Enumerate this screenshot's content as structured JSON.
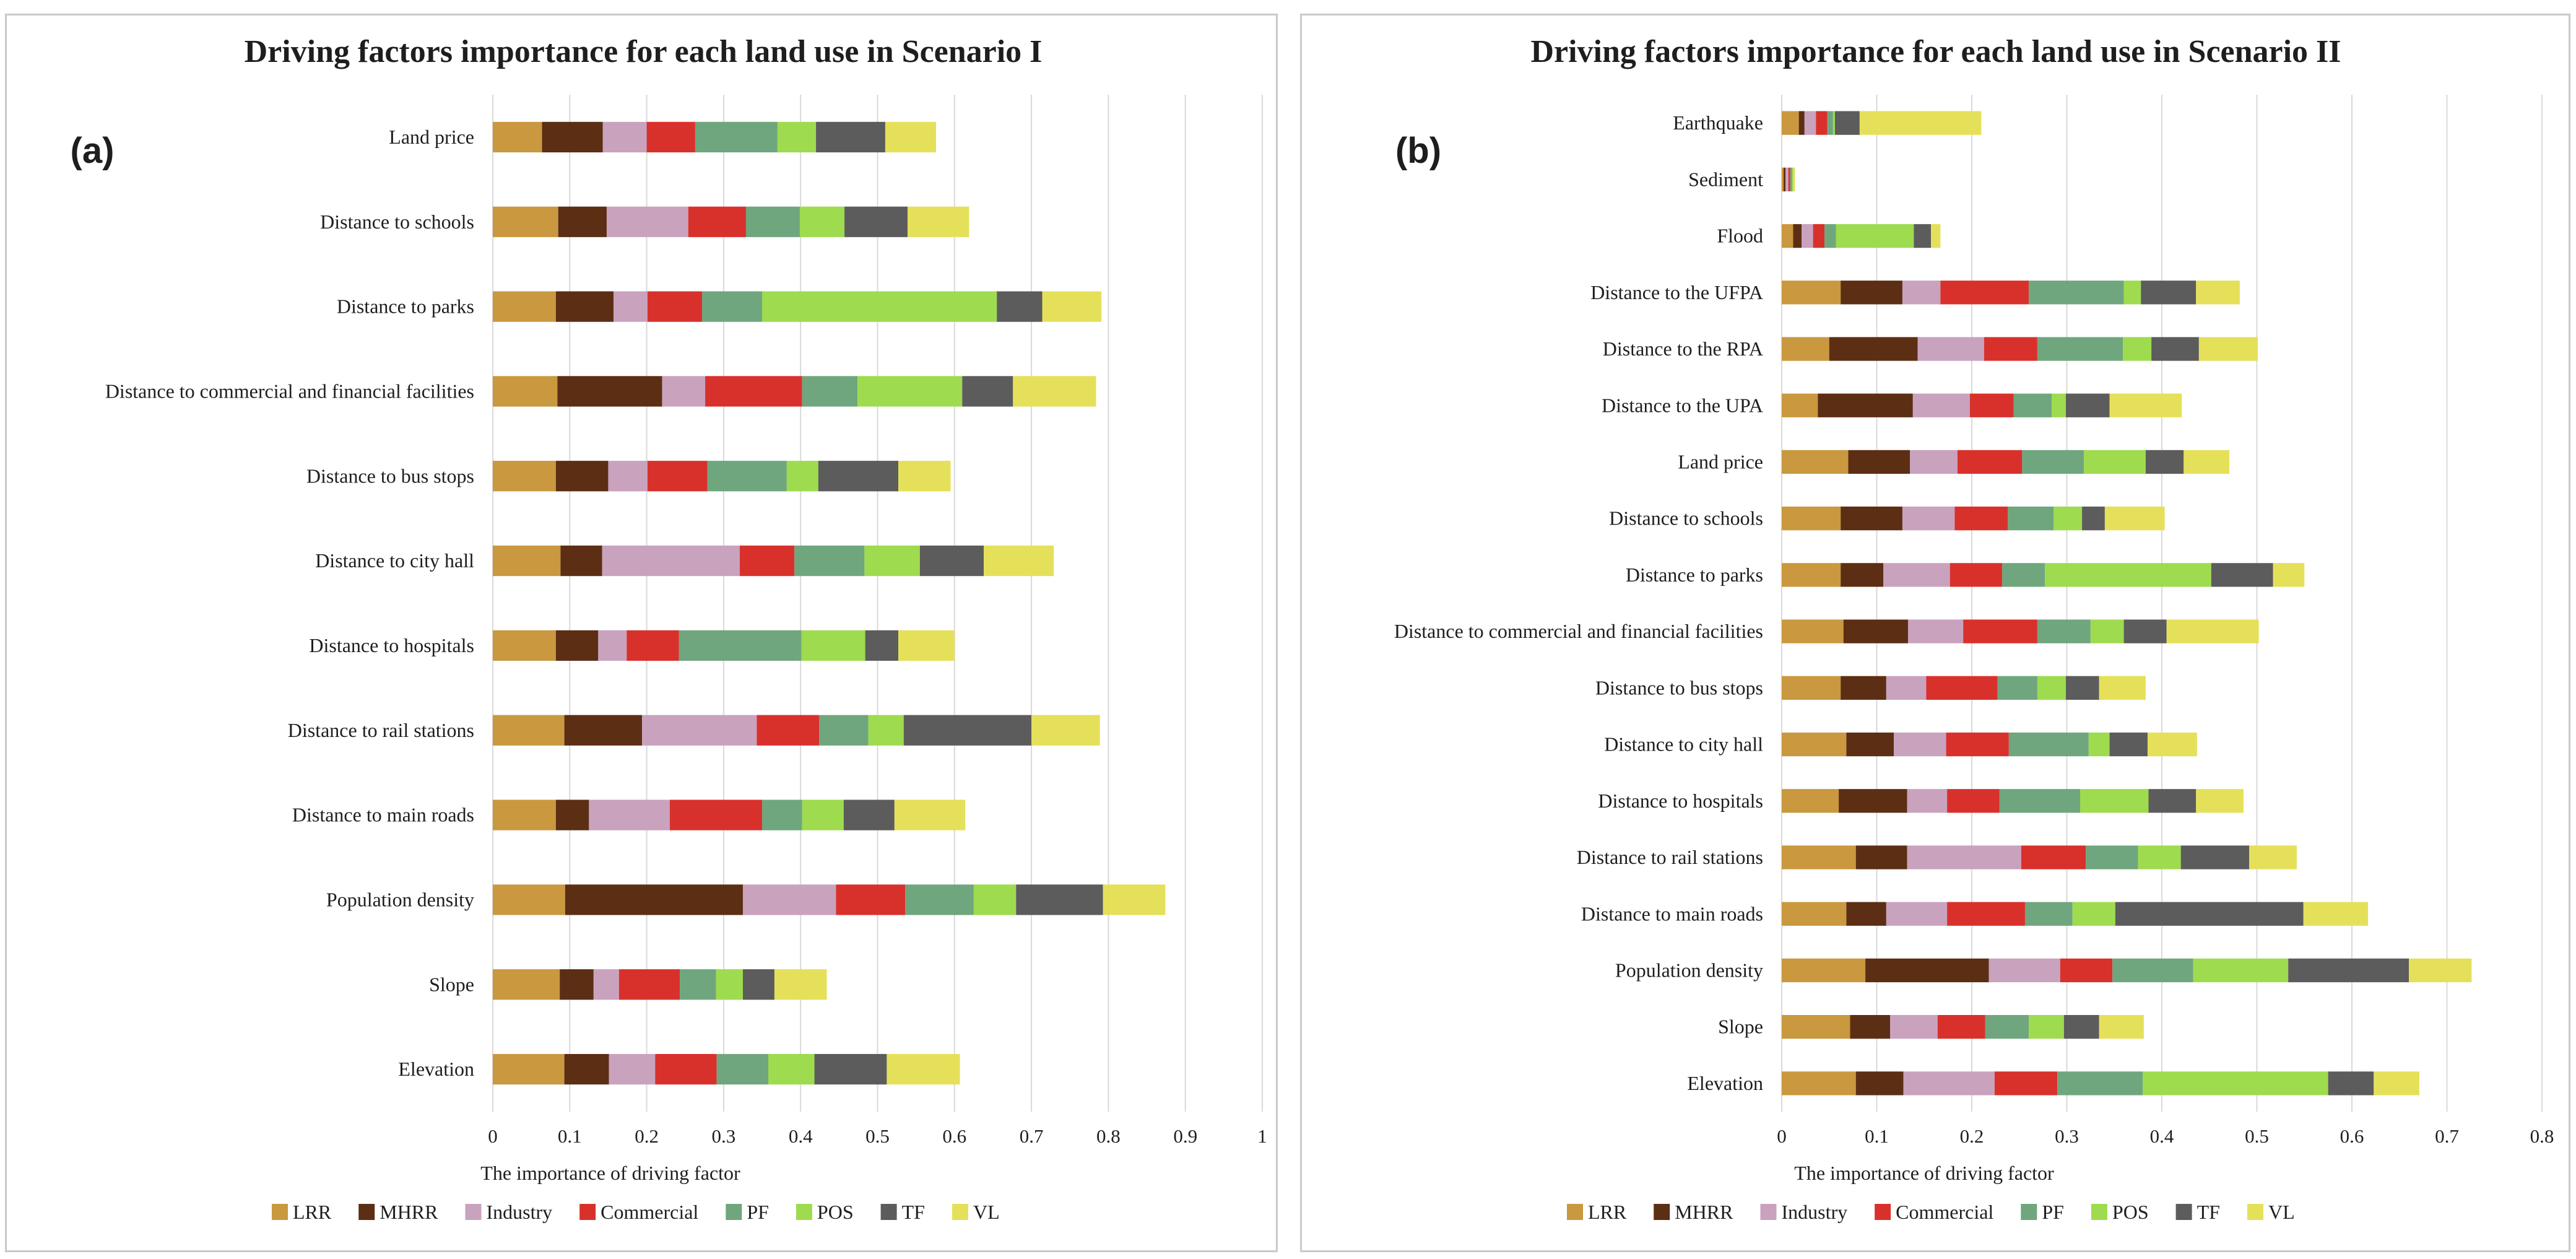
{
  "chart_data": [
    {
      "type": "bar",
      "stacked": true,
      "orientation": "horizontal",
      "title": "Driving factors importance for each land use in Scenario I",
      "panel_label": "(a)",
      "xlabel": "The importance of driving factor",
      "ylabel": "",
      "xlim": [
        0,
        1
      ],
      "xticks": [
        "0",
        "0.1",
        "0.2",
        "0.3",
        "0.4",
        "0.5",
        "0.6",
        "0.7",
        "0.8",
        "0.9",
        "1"
      ],
      "grid": true,
      "legend": "bottom",
      "categories": [
        "Land price",
        "Distance to schools",
        "Distance to parks",
        "Distance to commercial and financial facilities",
        "Distance to bus stops",
        "Distance to city hall",
        "Distance to hospitals",
        "Distance to rail stations",
        "Distance to main roads",
        "Population density",
        "Slope",
        "Elevation"
      ],
      "series": [
        {
          "name": "LRR",
          "color": "#C9983F",
          "values": [
            0.064,
            0.085,
            0.082,
            0.084,
            0.082,
            0.088,
            0.082,
            0.093,
            0.082,
            0.094,
            0.087,
            0.093
          ]
        },
        {
          "name": "MHRR",
          "color": "#5C2E14",
          "values": [
            0.079,
            0.063,
            0.075,
            0.136,
            0.068,
            0.054,
            0.055,
            0.101,
            0.043,
            0.231,
            0.044,
            0.058
          ]
        },
        {
          "name": "Industry",
          "color": "#C9A2BE",
          "values": [
            0.057,
            0.106,
            0.044,
            0.056,
            0.051,
            0.179,
            0.037,
            0.149,
            0.105,
            0.121,
            0.033,
            0.06
          ]
        },
        {
          "name": "Commercial",
          "color": "#D8312C",
          "values": [
            0.063,
            0.075,
            0.071,
            0.126,
            0.078,
            0.071,
            0.068,
            0.081,
            0.12,
            0.09,
            0.079,
            0.08
          ]
        },
        {
          "name": "PF",
          "color": "#6FA67E",
          "values": [
            0.107,
            0.07,
            0.078,
            0.072,
            0.103,
            0.091,
            0.159,
            0.064,
            0.052,
            0.089,
            0.047,
            0.067
          ]
        },
        {
          "name": "POS",
          "color": "#9EDB4E",
          "values": [
            0.05,
            0.058,
            0.305,
            0.136,
            0.041,
            0.072,
            0.083,
            0.046,
            0.054,
            0.055,
            0.035,
            0.06
          ]
        },
        {
          "name": "TF",
          "color": "#5C5C5C",
          "values": [
            0.09,
            0.082,
            0.059,
            0.066,
            0.104,
            0.083,
            0.043,
            0.166,
            0.066,
            0.113,
            0.041,
            0.094
          ]
        },
        {
          "name": "VL",
          "color": "#E5E05A",
          "values": [
            0.066,
            0.08,
            0.077,
            0.108,
            0.068,
            0.091,
            0.073,
            0.089,
            0.092,
            0.081,
            0.068,
            0.095
          ]
        }
      ]
    },
    {
      "type": "bar",
      "stacked": true,
      "orientation": "horizontal",
      "title": "Driving factors importance for each land use in Scenario II",
      "panel_label": "(b)",
      "xlabel": "The importance of driving  factor",
      "ylabel": "",
      "xlim": [
        0,
        0.8
      ],
      "xticks": [
        "0",
        "0.1",
        "0.2",
        "0.3",
        "0.4",
        "0.5",
        "0.6",
        "0.7",
        "0.8"
      ],
      "grid": true,
      "legend": "bottom",
      "categories": [
        "Earthquake",
        "Sediment",
        "Flood",
        "Distance to the UFPA",
        "Distance to the RPA",
        "Distance to the UPA",
        "Land price",
        "Distance to schools",
        "Distance to parks",
        "Distance to commercial and financial facilities",
        "Distance to bus stops",
        "Distance to city hall",
        "Distance to hospitals",
        "Distance to rail stations",
        "Distance to main roads",
        "Population density",
        "Slope",
        "Elevation"
      ],
      "series": [
        {
          "name": "LRR",
          "color": "#C9983F",
          "values": [
            0.018,
            0.002,
            0.012,
            0.062,
            0.05,
            0.038,
            0.07,
            0.062,
            0.062,
            0.065,
            0.062,
            0.068,
            0.06,
            0.078,
            0.068,
            0.088,
            0.072,
            0.078
          ]
        },
        {
          "name": "MHRR",
          "color": "#5C2E14",
          "values": [
            0.006,
            0.002,
            0.009,
            0.065,
            0.093,
            0.1,
            0.065,
            0.065,
            0.045,
            0.068,
            0.048,
            0.05,
            0.072,
            0.054,
            0.042,
            0.13,
            0.042,
            0.05
          ]
        },
        {
          "name": "Industry",
          "color": "#C9A2BE",
          "values": [
            0.012,
            0.003,
            0.012,
            0.04,
            0.07,
            0.06,
            0.05,
            0.055,
            0.07,
            0.058,
            0.042,
            0.055,
            0.042,
            0.12,
            0.064,
            0.075,
            0.05,
            0.096
          ]
        },
        {
          "name": "Commercial",
          "color": "#D8312C",
          "values": [
            0.012,
            0.002,
            0.012,
            0.093,
            0.056,
            0.046,
            0.068,
            0.056,
            0.055,
            0.078,
            0.075,
            0.066,
            0.055,
            0.068,
            0.082,
            0.055,
            0.05,
            0.066
          ]
        },
        {
          "name": "PF",
          "color": "#6FA67E",
          "values": [
            0.006,
            0.002,
            0.012,
            0.1,
            0.09,
            0.04,
            0.065,
            0.048,
            0.045,
            0.056,
            0.042,
            0.084,
            0.085,
            0.055,
            0.05,
            0.085,
            0.046,
            0.09
          ]
        },
        {
          "name": "POS",
          "color": "#9EDB4E",
          "values": [
            0.002,
            0.001,
            0.082,
            0.018,
            0.03,
            0.015,
            0.065,
            0.03,
            0.175,
            0.035,
            0.03,
            0.022,
            0.072,
            0.045,
            0.045,
            0.1,
            0.037,
            0.195
          ]
        },
        {
          "name": "TF",
          "color": "#5C5C5C",
          "values": [
            0.026,
            0.0,
            0.018,
            0.058,
            0.05,
            0.046,
            0.04,
            0.024,
            0.065,
            0.045,
            0.035,
            0.04,
            0.05,
            0.072,
            0.198,
            0.127,
            0.037,
            0.048
          ]
        },
        {
          "name": "VL",
          "color": "#E5E05A",
          "values": [
            0.128,
            0.002,
            0.01,
            0.046,
            0.062,
            0.076,
            0.048,
            0.063,
            0.033,
            0.097,
            0.049,
            0.052,
            0.05,
            0.05,
            0.068,
            0.066,
            0.047,
            0.048
          ]
        }
      ]
    }
  ]
}
